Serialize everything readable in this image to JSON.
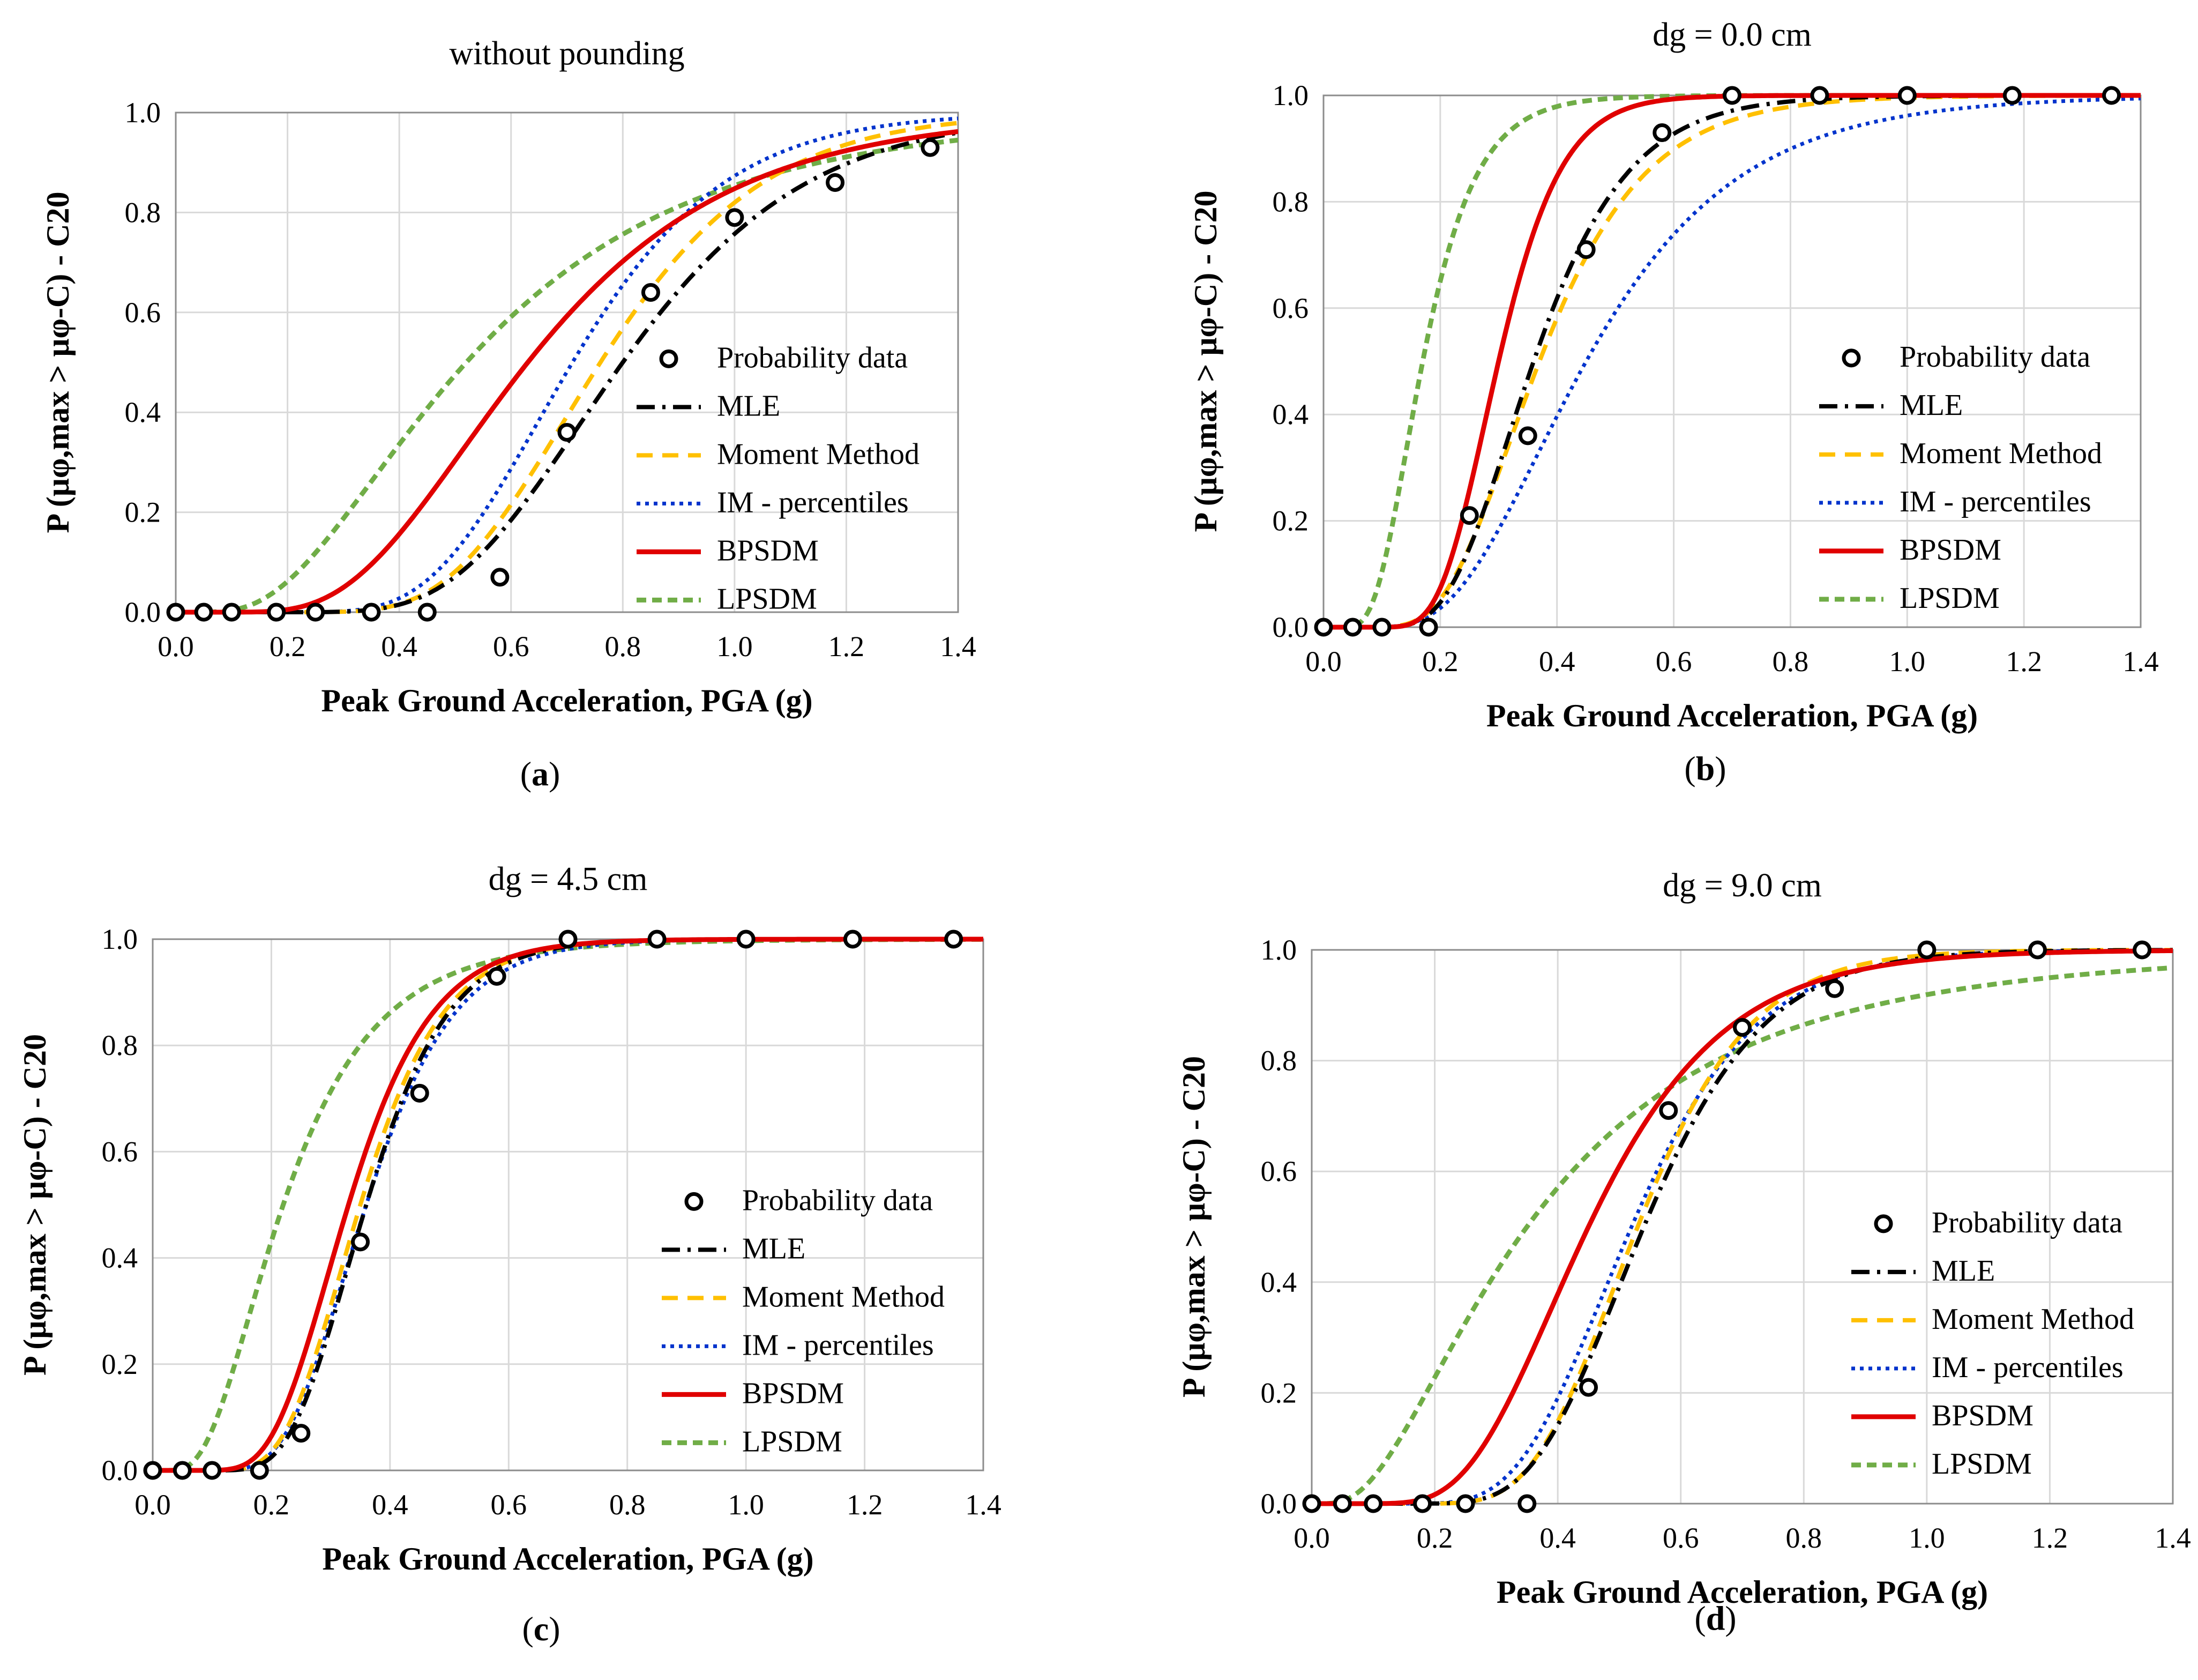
{
  "figure": {
    "colors": {
      "mle": "#000000",
      "moment": "#ffc000",
      "im": "#0033cc",
      "bpsdm": "#e00000",
      "lpsdm": "#70ad47",
      "data_marker": "#000000"
    }
  },
  "chart_data": [
    {
      "type": "line",
      "panel": "a",
      "caption_letter": "a",
      "title": "without pounding",
      "xlabel": "Peak Ground Acceleration, PGA (g)",
      "ylabel": "P (μφ,max > μφ-C) - C20",
      "xlim": [
        0,
        1.4
      ],
      "ylim": [
        0,
        1
      ],
      "xticks": [
        "0.0",
        "0.2",
        "0.4",
        "0.6",
        "0.8",
        "1.0",
        "1.2",
        "1.4"
      ],
      "yticks": [
        "0.0",
        "0.2",
        "0.4",
        "0.6",
        "0.8",
        "1.0"
      ],
      "grid": true,
      "legend": [
        "Probability data",
        "MLE",
        "Moment Method",
        "IM - percentiles",
        "BPSDM",
        "LPSDM"
      ],
      "legend_position": "center-right",
      "probability_data": {
        "x": [
          0.0,
          0.05,
          0.1,
          0.18,
          0.25,
          0.35,
          0.45,
          0.58,
          0.7,
          0.85,
          1.0,
          1.18,
          1.35
        ],
        "y": [
          0.0,
          0.0,
          0.0,
          0.0,
          0.0,
          0.0,
          0.0,
          0.07,
          0.36,
          0.64,
          0.79,
          0.86,
          0.93
        ]
      },
      "series": [
        {
          "name": "MLE",
          "median": 0.8,
          "beta": 0.32
        },
        {
          "name": "Moment Method",
          "median": 0.76,
          "beta": 0.3
        },
        {
          "name": "IM - percentiles",
          "median": 0.71,
          "beta": 0.3
        },
        {
          "name": "BPSDM",
          "median": 0.63,
          "beta": 0.45
        },
        {
          "name": "LPSDM",
          "median": 0.52,
          "beta": 0.62
        }
      ]
    },
    {
      "type": "line",
      "panel": "b",
      "caption_letter": "b",
      "title": "dg = 0.0 cm",
      "xlabel": "Peak Ground Acceleration, PGA (g)",
      "ylabel": "P (μφ,max > μφ-C) - C20",
      "xlim": [
        0,
        1.4
      ],
      "ylim": [
        0,
        1
      ],
      "xticks": [
        "0.0",
        "0.2",
        "0.4",
        "0.6",
        "0.8",
        "1.0",
        "1.2",
        "1.4"
      ],
      "yticks": [
        "0.0",
        "0.2",
        "0.4",
        "0.6",
        "0.8",
        "1.0"
      ],
      "grid": true,
      "legend": [
        "Probability data",
        "MLE",
        "Moment Method",
        "IM - percentiles",
        "BPSDM",
        "LPSDM"
      ],
      "legend_position": "center-right",
      "probability_data": {
        "x": [
          0.0,
          0.05,
          0.1,
          0.18,
          0.25,
          0.35,
          0.45,
          0.58,
          0.7,
          0.85,
          1.0,
          1.18,
          1.35
        ],
        "y": [
          0.0,
          0.0,
          0.0,
          0.0,
          0.21,
          0.36,
          0.71,
          0.93,
          1.0,
          1.0,
          1.0,
          1.0,
          1.0
        ]
      },
      "series": [
        {
          "name": "MLE",
          "median": 0.36,
          "beta": 0.35
        },
        {
          "name": "Moment Method",
          "median": 0.37,
          "beta": 0.38
        },
        {
          "name": "IM - percentiles",
          "median": 0.45,
          "beta": 0.45
        },
        {
          "name": "BPSDM",
          "median": 0.3,
          "beta": 0.28
        },
        {
          "name": "LPSDM",
          "median": 0.17,
          "beta": 0.42
        }
      ]
    },
    {
      "type": "line",
      "panel": "c",
      "caption_letter": "c",
      "title": "dg = 4.5 cm",
      "xlabel": "Peak Ground Acceleration, PGA (g)",
      "ylabel": "P (μφ,max > μφ-C) - C20",
      "xlim": [
        0,
        1.4
      ],
      "ylim": [
        0,
        1
      ],
      "xticks": [
        "0.0",
        "0.2",
        "0.4",
        "0.6",
        "0.8",
        "1.0",
        "1.2",
        "1.4"
      ],
      "yticks": [
        "0.0",
        "0.2",
        "0.4",
        "0.6",
        "0.8",
        "1.0"
      ],
      "grid": true,
      "legend": [
        "Probability data",
        "MLE",
        "Moment Method",
        "IM - percentiles",
        "BPSDM",
        "LPSDM"
      ],
      "legend_position": "center-right",
      "probability_data": {
        "x": [
          0.0,
          0.05,
          0.1,
          0.18,
          0.25,
          0.35,
          0.45,
          0.58,
          0.7,
          0.85,
          1.0,
          1.18,
          1.35
        ],
        "y": [
          0.0,
          0.0,
          0.0,
          0.0,
          0.07,
          0.43,
          0.71,
          0.93,
          1.0,
          1.0,
          1.0,
          1.0,
          1.0
        ]
      },
      "series": [
        {
          "name": "MLE",
          "median": 0.36,
          "beta": 0.3
        },
        {
          "name": "Moment Method",
          "median": 0.35,
          "beta": 0.31
        },
        {
          "name": "IM - percentiles",
          "median": 0.36,
          "beta": 0.32
        },
        {
          "name": "BPSDM",
          "median": 0.33,
          "beta": 0.33
        },
        {
          "name": "LPSDM",
          "median": 0.22,
          "beta": 0.55
        }
      ]
    },
    {
      "type": "line",
      "panel": "d",
      "caption_letter": "d",
      "title": "dg = 9.0 cm",
      "xlabel": "Peak Ground Acceleration, PGA (g)",
      "ylabel": "P (μφ,max > μφ-C) - C20",
      "xlim": [
        0,
        1.4
      ],
      "ylim": [
        0,
        1
      ],
      "xticks": [
        "0.0",
        "0.2",
        "0.4",
        "0.6",
        "0.8",
        "1.0",
        "1.2",
        "1.4"
      ],
      "yticks": [
        "0.0",
        "0.2",
        "0.4",
        "0.6",
        "0.8",
        "1.0"
      ],
      "grid": true,
      "legend": [
        "Probability data",
        "MLE",
        "Moment Method",
        "IM - percentiles",
        "BPSDM",
        "LPSDM"
      ],
      "legend_position": "center-right",
      "probability_data": {
        "x": [
          0.0,
          0.05,
          0.1,
          0.18,
          0.25,
          0.35,
          0.45,
          0.58,
          0.7,
          0.85,
          1.0,
          1.18,
          1.35
        ],
        "y": [
          0.0,
          0.0,
          0.0,
          0.0,
          0.0,
          0.0,
          0.21,
          0.71,
          0.86,
          0.93,
          1.0,
          1.0,
          1.0
        ]
      },
      "series": [
        {
          "name": "MLE",
          "median": 0.54,
          "beta": 0.28
        },
        {
          "name": "Moment Method",
          "median": 0.53,
          "beta": 0.27
        },
        {
          "name": "IM - percentiles",
          "median": 0.52,
          "beta": 0.3
        },
        {
          "name": "BPSDM",
          "median": 0.45,
          "beta": 0.38
        },
        {
          "name": "LPSDM",
          "median": 0.35,
          "beta": 0.75
        }
      ]
    }
  ]
}
